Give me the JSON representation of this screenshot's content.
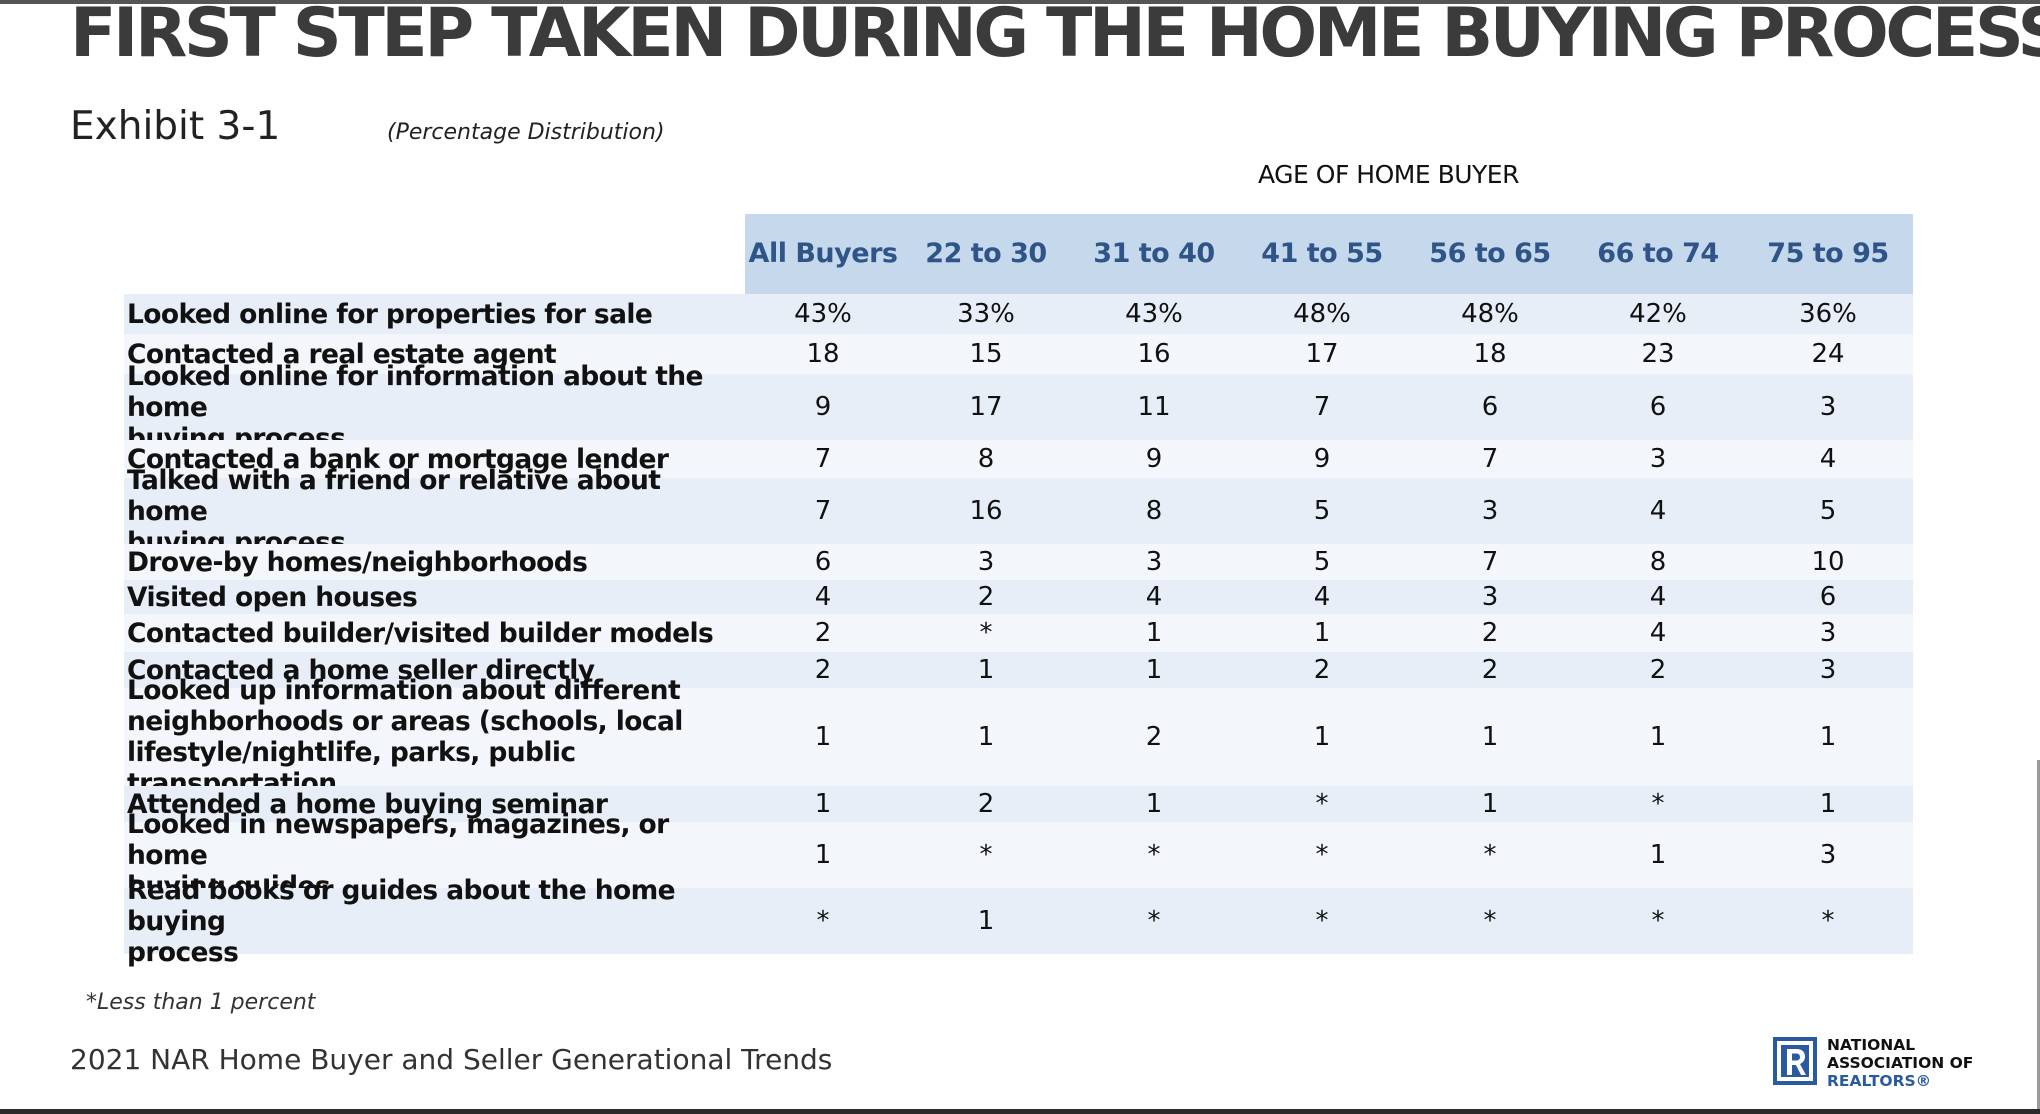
{
  "title": "FIRST STEP TAKEN DURING THE HOME BUYING PROCESS",
  "exhibit": "Exhibit 3-1",
  "distribution_note": "(Percentage Distribution)",
  "group_header": "AGE OF HOME BUYER",
  "footnote": "*Less than 1 percent",
  "source": "2021 NAR Home Buyer and Seller Generational Trends",
  "logo": {
    "line1": "NATIONAL",
    "line2": "ASSOCIATION OF",
    "line3": "REALTORS®"
  },
  "colors": {
    "header_bg": "#c6d9ec",
    "header_text": "#2e5488",
    "row_alt_1": "#e7eef7",
    "row_alt_2": "#f3f6fa",
    "logo_blue": "#2a5aa0"
  },
  "chart_data": {
    "type": "table",
    "title": "FIRST STEP TAKEN DURING THE HOME BUYING PROCESS",
    "columns": [
      "All Buyers",
      "22 to 30",
      "31 to 40",
      "41 to 55",
      "56 to 65",
      "66 to 74",
      "75 to 95"
    ],
    "rows": [
      {
        "lines": [
          "Looked online for properties for sale"
        ],
        "values": [
          "43%",
          "33%",
          "43%",
          "48%",
          "48%",
          "42%",
          "36%"
        ]
      },
      {
        "lines": [
          "Contacted a real estate agent"
        ],
        "values": [
          "18",
          "15",
          "16",
          "17",
          "18",
          "23",
          "24"
        ]
      },
      {
        "lines": [
          "Looked online for information about the home",
          "buying process"
        ],
        "values": [
          "9",
          "17",
          "11",
          "7",
          "6",
          "6",
          "3"
        ]
      },
      {
        "lines": [
          "Contacted a bank or mortgage lender"
        ],
        "values": [
          "7",
          "8",
          "9",
          "9",
          "7",
          "3",
          "4"
        ]
      },
      {
        "lines": [
          "Talked with a friend or relative about home",
          "buying process"
        ],
        "values": [
          "7",
          "16",
          "8",
          "5",
          "3",
          "4",
          "5"
        ]
      },
      {
        "lines": [
          "Drove-by homes/neighborhoods"
        ],
        "values": [
          "6",
          "3",
          "3",
          "5",
          "7",
          "8",
          "10"
        ]
      },
      {
        "lines": [
          "Visited open houses"
        ],
        "values": [
          "4",
          "2",
          "4",
          "4",
          "3",
          "4",
          "6"
        ]
      },
      {
        "lines": [
          "Contacted builder/visited builder models"
        ],
        "values": [
          "2",
          "*",
          "1",
          "1",
          "2",
          "4",
          "3"
        ]
      },
      {
        "lines": [
          "Contacted a home seller directly"
        ],
        "values": [
          "2",
          "1",
          "1",
          "2",
          "2",
          "2",
          "3"
        ]
      },
      {
        "lines": [
          "Looked up information about different",
          "neighborhoods or areas (schools, local",
          "lifestyle/nightlife, parks, public transportation"
        ],
        "values": [
          "1",
          "1",
          "2",
          "1",
          "1",
          "1",
          "1"
        ]
      },
      {
        "lines": [
          "Attended a home buying seminar"
        ],
        "values": [
          "1",
          "2",
          "1",
          "*",
          "1",
          "*",
          "1"
        ]
      },
      {
        "lines": [
          "Looked in newspapers, magazines, or home",
          "buying guides"
        ],
        "values": [
          "1",
          "*",
          "*",
          "*",
          "*",
          "1",
          "3"
        ]
      },
      {
        "lines": [
          "Read books or guides about the home buying",
          "process"
        ],
        "values": [
          "*",
          "1",
          "*",
          "*",
          "*",
          "*",
          "*"
        ]
      }
    ]
  }
}
